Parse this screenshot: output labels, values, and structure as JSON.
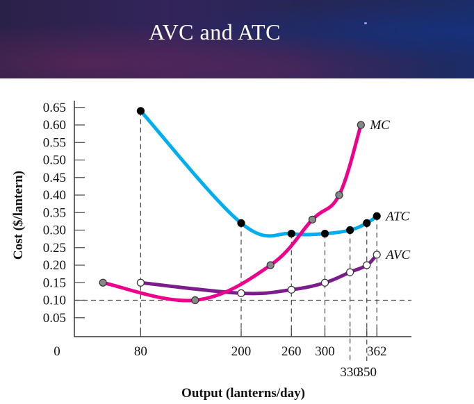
{
  "header": {
    "title": "AVC and ATC"
  },
  "chart_data": {
    "type": "line",
    "title": "AVC and ATC",
    "xlabel": "Output (lanterns/day)",
    "ylabel": "Cost ($/lantern)",
    "xlim": [
      0,
      405
    ],
    "ylim": [
      0,
      0.67
    ],
    "x_origin_label": "0",
    "x_ticks": [
      {
        "value": 80,
        "label": "80",
        "row": 1
      },
      {
        "value": 200,
        "label": "200",
        "row": 1
      },
      {
        "value": 260,
        "label": "260",
        "row": 1
      },
      {
        "value": 300,
        "label": "300",
        "row": 1
      },
      {
        "value": 330,
        "label": "330",
        "row": 2
      },
      {
        "value": 350,
        "label": "350",
        "row": 2
      },
      {
        "value": 362,
        "label": "362",
        "row": 1
      }
    ],
    "y_ticks": [
      {
        "value": 0.65,
        "label": "0.65"
      },
      {
        "value": 0.6,
        "label": "0.60"
      },
      {
        "value": 0.55,
        "label": "0.55"
      },
      {
        "value": 0.5,
        "label": "0.50"
      },
      {
        "value": 0.45,
        "label": "0.45"
      },
      {
        "value": 0.4,
        "label": "0.40"
      },
      {
        "value": 0.35,
        "label": "0.35"
      },
      {
        "value": 0.3,
        "label": "0.30"
      },
      {
        "value": 0.25,
        "label": "0.25"
      },
      {
        "value": 0.2,
        "label": "0.20"
      },
      {
        "value": 0.15,
        "label": "0.15"
      },
      {
        "value": 0.1,
        "label": "0.10"
      },
      {
        "value": 0.05,
        "label": "0.05"
      }
    ],
    "reference_line_y": 0.1,
    "series": [
      {
        "name": "ATC",
        "label": "ATC",
        "color": "#00aeef",
        "marker": "filled-black",
        "points": [
          [
            80,
            0.64
          ],
          [
            200,
            0.32
          ],
          [
            260,
            0.29
          ],
          [
            300,
            0.29
          ],
          [
            330,
            0.3
          ],
          [
            350,
            0.32
          ],
          [
            362,
            0.34
          ]
        ]
      },
      {
        "name": "AVC",
        "label": "AVC",
        "color": "#7b1e8c",
        "marker": "open-white",
        "points": [
          [
            80,
            0.15
          ],
          [
            200,
            0.12
          ],
          [
            260,
            0.13
          ],
          [
            300,
            0.15
          ],
          [
            330,
            0.18
          ],
          [
            350,
            0.2
          ],
          [
            362,
            0.23
          ]
        ]
      },
      {
        "name": "MC",
        "label": "MC",
        "color": "#ec008c",
        "marker": "gray",
        "points": [
          [
            35,
            0.15
          ],
          [
            145,
            0.1
          ],
          [
            235,
            0.2
          ],
          [
            285,
            0.33
          ],
          [
            317,
            0.4
          ],
          [
            343,
            0.6
          ]
        ]
      }
    ]
  }
}
